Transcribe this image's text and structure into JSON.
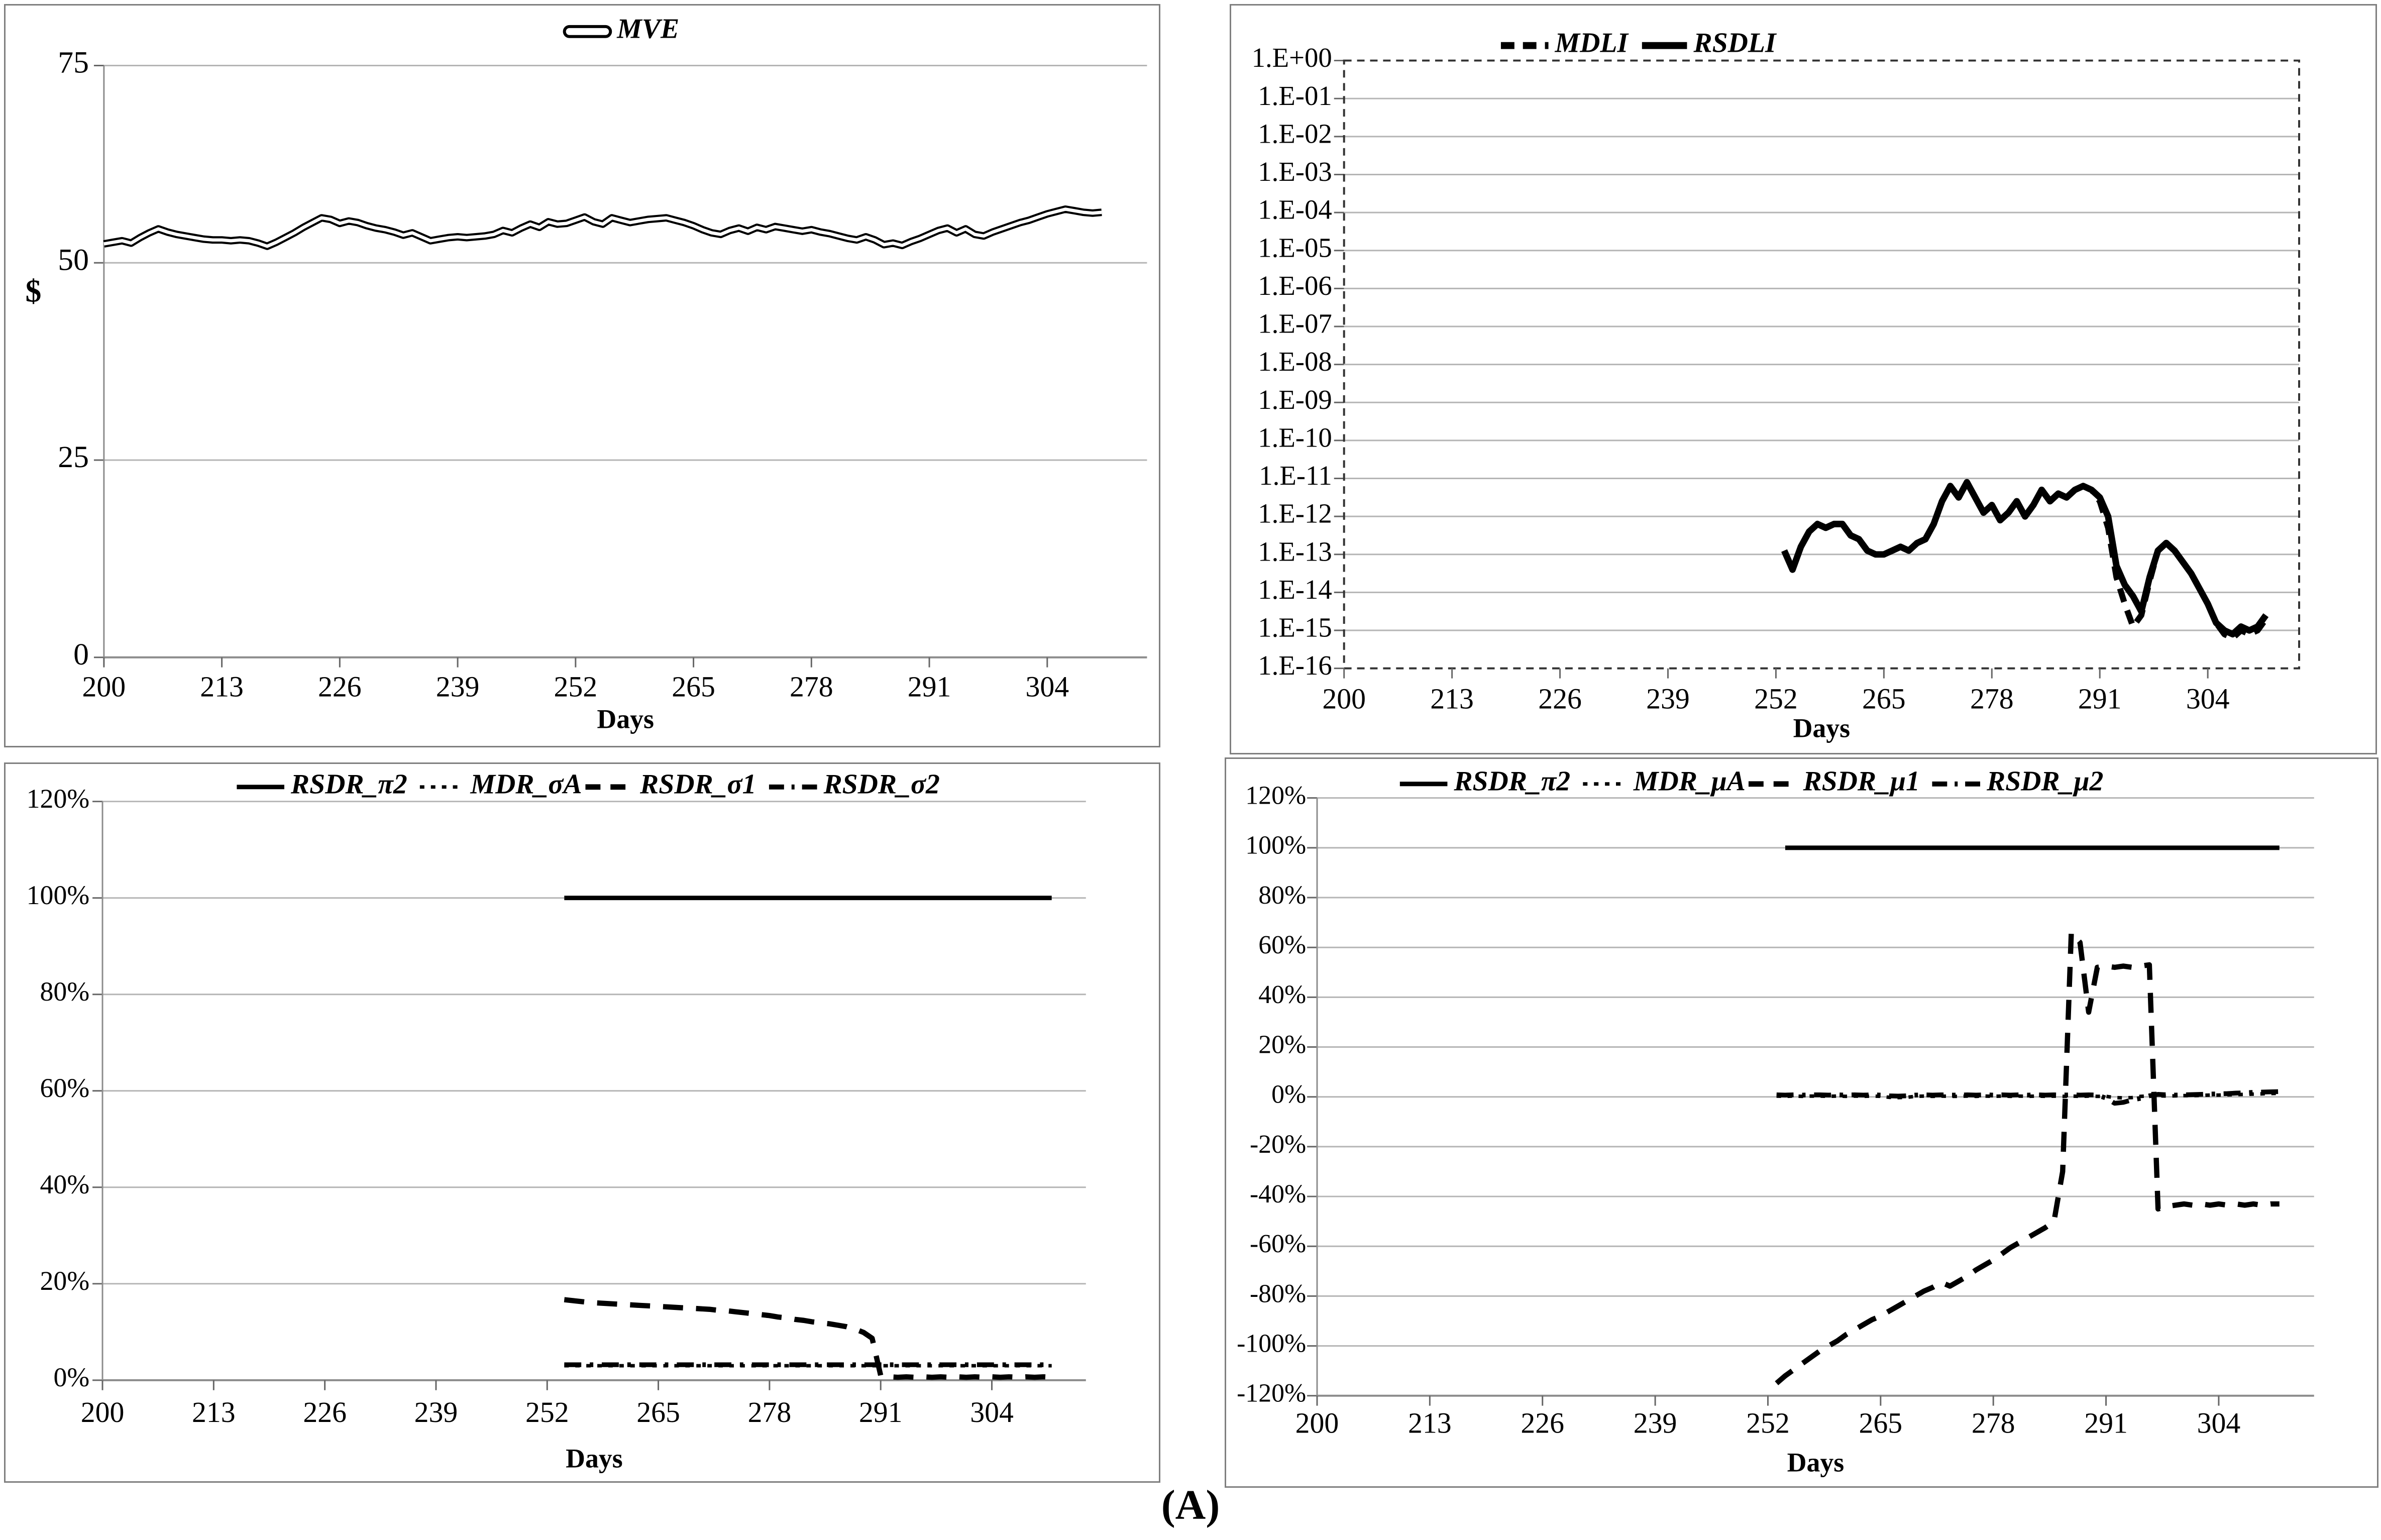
{
  "caption": "(A)",
  "colors": {
    "line": "#000000",
    "grid": "#b5b5b5",
    "axis": "#8c8c8c",
    "tick": "#666666",
    "frame_dash": "#333333",
    "text": "#000000",
    "panel_border": "#7f7f7f",
    "background": "#ffffff"
  },
  "chart_data": [
    {
      "id": "mve",
      "type": "line",
      "legend": [
        {
          "label": "MVE",
          "style": "outline"
        }
      ],
      "xlabel": "Days",
      "ylabel": "$",
      "x_ticks": [
        200,
        213,
        226,
        239,
        252,
        265,
        278,
        291,
        304
      ],
      "x_domain": [
        200,
        315
      ],
      "y_scale": "linear",
      "y_domain": [
        0,
        75
      ],
      "axis_at": 0,
      "y_ticks": [
        {
          "label": "0",
          "value": 0
        },
        {
          "label": "25",
          "value": 25
        },
        {
          "label": "50",
          "value": 50
        },
        {
          "label": "75",
          "value": 75
        }
      ],
      "series": [
        {
          "name": "MVE",
          "style": "outline",
          "x_start": 200,
          "values": [
            52.4,
            52.6,
            52.8,
            52.5,
            53.2,
            53.8,
            54.3,
            53.9,
            53.6,
            53.4,
            53.2,
            53.0,
            52.9,
            52.9,
            52.8,
            52.9,
            52.8,
            52.5,
            52.1,
            52.6,
            53.2,
            53.8,
            54.5,
            55.1,
            55.7,
            55.5,
            55.0,
            55.3,
            55.1,
            54.7,
            54.4,
            54.2,
            53.9,
            53.5,
            53.8,
            53.3,
            52.8,
            53.0,
            53.2,
            53.3,
            53.2,
            53.3,
            53.4,
            53.6,
            54.1,
            53.8,
            54.4,
            54.9,
            54.5,
            55.2,
            54.9,
            55.0,
            55.4,
            55.8,
            55.2,
            54.9,
            55.7,
            55.4,
            55.1,
            55.3,
            55.5,
            55.6,
            55.7,
            55.4,
            55.1,
            54.7,
            54.2,
            53.8,
            53.6,
            54.1,
            54.4,
            54.0,
            54.5,
            54.2,
            54.6,
            54.4,
            54.2,
            54.0,
            54.2,
            53.9,
            53.7,
            53.4,
            53.1,
            52.9,
            53.3,
            52.9,
            52.3,
            52.5,
            52.2,
            52.7,
            53.1,
            53.6,
            54.1,
            54.4,
            53.8,
            54.3,
            53.6,
            53.4,
            53.9,
            54.3,
            54.7,
            55.1,
            55.4,
            55.8,
            56.2,
            56.5,
            56.8,
            56.6,
            56.4,
            56.3,
            56.4
          ]
        }
      ]
    },
    {
      "id": "dli",
      "type": "line",
      "legend": [
        {
          "label": "MDLI",
          "style": "dash-thick"
        },
        {
          "label": "RSDLI",
          "style": "solid-thick"
        }
      ],
      "xlabel": "Days",
      "ylabel": "",
      "x_ticks": [
        200,
        213,
        226,
        239,
        252,
        265,
        278,
        291,
        304
      ],
      "x_domain": [
        200,
        315
      ],
      "y_scale": "log-exponent",
      "y_domain": [
        0,
        -16
      ],
      "frame": "dashed",
      "y_ticks": [
        {
          "label": "1.E+00",
          "value": 0
        },
        {
          "label": "1.E-01",
          "value": -1
        },
        {
          "label": "1.E-02",
          "value": -2
        },
        {
          "label": "1.E-03",
          "value": -3
        },
        {
          "label": "1.E-04",
          "value": -4
        },
        {
          "label": "1.E-05",
          "value": -5
        },
        {
          "label": "1.E-06",
          "value": -6
        },
        {
          "label": "1.E-07",
          "value": -7
        },
        {
          "label": "1.E-08",
          "value": -8
        },
        {
          "label": "1.E-09",
          "value": -9
        },
        {
          "label": "1.E-10",
          "value": -10
        },
        {
          "label": "1.E-11",
          "value": -11
        },
        {
          "label": "1.E-12",
          "value": -12
        },
        {
          "label": "1.E-13",
          "value": -13
        },
        {
          "label": "1.E-14",
          "value": -14
        },
        {
          "label": "1.E-15",
          "value": -15
        },
        {
          "label": "1.E-16",
          "value": -16
        }
      ],
      "series": [
        {
          "name": "MDLI",
          "style": "dash-thick",
          "x_start": 253,
          "values": [
            -12.9,
            -13.4,
            -12.8,
            -12.4,
            -12.2,
            -12.3,
            -12.2,
            -12.2,
            -12.5,
            -12.6,
            -12.9,
            -13.0,
            -13.0,
            -12.9,
            -12.8,
            -12.9,
            -12.7,
            -12.6,
            -12.2,
            -11.6,
            -11.2,
            -11.5,
            -11.1,
            -11.5,
            -11.9,
            -11.7,
            -12.1,
            -11.9,
            -11.6,
            -12.0,
            -11.7,
            -11.3,
            -11.6,
            -11.4,
            -11.5,
            -11.3,
            -11.2,
            -11.3,
            -11.6,
            -12.3,
            -13.6,
            -14.3,
            -14.9,
            -14.6,
            -13.7,
            -12.9,
            -12.7,
            -12.9,
            -13.2,
            -13.5,
            -13.9,
            -14.3,
            -14.8,
            -15.1,
            -15.2,
            -15.0,
            -15.1,
            -15.0,
            -14.7
          ]
        },
        {
          "name": "RSDLI",
          "style": "solid-thick",
          "x_start": 253,
          "values": [
            -12.9,
            -13.4,
            -12.8,
            -12.4,
            -12.2,
            -12.3,
            -12.2,
            -12.2,
            -12.5,
            -12.6,
            -12.9,
            -13.0,
            -13.0,
            -12.9,
            -12.8,
            -12.9,
            -12.7,
            -12.6,
            -12.2,
            -11.6,
            -11.2,
            -11.5,
            -11.1,
            -11.5,
            -11.9,
            -11.7,
            -12.1,
            -11.9,
            -11.6,
            -12.0,
            -11.7,
            -11.3,
            -11.6,
            -11.4,
            -11.5,
            -11.3,
            -11.2,
            -11.3,
            -11.5,
            -12.0,
            -13.3,
            -13.8,
            -14.1,
            -14.5,
            -13.6,
            -12.9,
            -12.7,
            -12.9,
            -13.2,
            -13.5,
            -13.9,
            -14.3,
            -14.8,
            -15.0,
            -15.1,
            -14.9,
            -15.0,
            -14.9,
            -14.6
          ]
        }
      ]
    },
    {
      "id": "sigma",
      "type": "line",
      "legend": [
        {
          "label": "RSDR_π2",
          "style": "solid"
        },
        {
          "label": "MDR_σA",
          "style": "dot"
        },
        {
          "label": "RSDR_σ1",
          "style": "dash"
        },
        {
          "label": "RSDR_σ2",
          "style": "dash-dot"
        }
      ],
      "xlabel": "Days",
      "ylabel": "",
      "x_ticks": [
        200,
        213,
        226,
        239,
        252,
        265,
        278,
        291,
        304
      ],
      "x_domain": [
        200,
        315
      ],
      "y_scale": "linear",
      "y_domain": [
        0,
        120
      ],
      "axis_at": 0,
      "y_ticks": [
        {
          "label": "0%",
          "value": 0
        },
        {
          "label": "20%",
          "value": 20
        },
        {
          "label": "40%",
          "value": 40
        },
        {
          "label": "60%",
          "value": 60
        },
        {
          "label": "80%",
          "value": 80
        },
        {
          "label": "100%",
          "value": 100
        },
        {
          "label": "120%",
          "value": 120
        }
      ],
      "series": [
        {
          "name": "MDR_σA",
          "style": "dot",
          "x_start": 254,
          "x_end": 311,
          "const": 3.0
        },
        {
          "name": "RSDR_σ2",
          "style": "dash-dot",
          "x_start": 254,
          "x_end": 311,
          "const": 3.2
        },
        {
          "name": "RSDR_σ1",
          "style": "dash",
          "x_start": 254,
          "values": [
            16.7,
            16.5,
            16.3,
            16.1,
            16.0,
            15.9,
            15.8,
            15.7,
            15.6,
            15.5,
            15.4,
            15.3,
            15.2,
            15.1,
            15.0,
            14.9,
            14.8,
            14.7,
            14.5,
            14.4,
            14.2,
            14.0,
            13.8,
            13.6,
            13.4,
            13.1,
            12.9,
            12.6,
            12.4,
            12.1,
            11.9,
            11.7,
            11.4,
            11.1,
            10.6,
            9.9,
            8.7,
            1.0,
            0.7,
            0.6,
            0.7,
            0.6,
            0.7,
            0.6,
            0.7,
            0.6,
            0.7,
            0.6,
            0.7,
            0.6,
            0.7,
            0.6,
            0.7,
            0.6,
            0.7,
            0.6,
            0.7,
            0.6
          ]
        },
        {
          "name": "RSDR_π2",
          "style": "solid",
          "x_start": 254,
          "x_end": 311,
          "const": 100
        }
      ]
    },
    {
      "id": "mu",
      "type": "line",
      "legend": [
        {
          "label": "RSDR_π2",
          "style": "solid"
        },
        {
          "label": "MDR_μA",
          "style": "dot"
        },
        {
          "label": "RSDR_μ1",
          "style": "dash"
        },
        {
          "label": "RSDR_μ2",
          "style": "dash-dot"
        }
      ],
      "xlabel": "Days",
      "ylabel": "",
      "x_ticks": [
        200,
        213,
        226,
        239,
        252,
        265,
        278,
        291,
        304
      ],
      "x_domain": [
        200,
        315
      ],
      "y_scale": "linear",
      "y_domain": [
        -120,
        120
      ],
      "axis_at": -120,
      "y_ticks": [
        {
          "label": "-120%",
          "value": -120
        },
        {
          "label": "-100%",
          "value": -100
        },
        {
          "label": "-80%",
          "value": -80
        },
        {
          "label": "-60%",
          "value": -60
        },
        {
          "label": "-40%",
          "value": -40
        },
        {
          "label": "-20%",
          "value": -20
        },
        {
          "label": "0%",
          "value": 0
        },
        {
          "label": "20%",
          "value": 20
        },
        {
          "label": "40%",
          "value": 40
        },
        {
          "label": "60%",
          "value": 60
        },
        {
          "label": "80%",
          "value": 80
        },
        {
          "label": "100%",
          "value": 100
        },
        {
          "label": "120%",
          "value": 120
        }
      ],
      "series": [
        {
          "name": "MDR_μA",
          "style": "dot",
          "x_start": 253,
          "values": [
            0.3,
            0.2,
            0.3,
            0.2,
            0.3,
            0.3,
            0.2,
            0.3,
            0.2,
            0.3,
            0.2,
            0.3,
            0.2,
            -0.2,
            -0.3,
            -0.2,
            0.2,
            0.3,
            0.2,
            0.3,
            0.2,
            0.2,
            0.3,
            0.2,
            0.3,
            0.2,
            0.3,
            0.2,
            0.3,
            0.2,
            0.3,
            0.2,
            0.3,
            0.2,
            0.3,
            0.2,
            0.3,
            0.2,
            0.2,
            -0.3,
            -0.4,
            -0.3,
            0.2,
            0.3,
            0.4,
            0.3,
            0.4,
            0.5,
            0.5,
            0.6,
            0.7,
            0.7,
            0.8,
            0.9,
            1.0,
            1.1,
            1.2,
            1.3,
            1.4
          ]
        },
        {
          "name": "RSDR_μ2",
          "style": "dash-dot",
          "x_start": 253,
          "values": [
            0.8,
            0.7,
            0.8,
            0.7,
            0.8,
            0.8,
            0.7,
            0.8,
            0.7,
            0.8,
            0.7,
            0.8,
            0.7,
            0.4,
            0.3,
            0.4,
            0.7,
            0.8,
            0.7,
            0.8,
            0.7,
            0.7,
            0.8,
            0.7,
            0.8,
            0.7,
            0.8,
            0.7,
            0.8,
            0.7,
            0.8,
            0.7,
            0.8,
            0.7,
            0.8,
            0.7,
            0.8,
            0.7,
            -0.5,
            -2.6,
            -2.2,
            -1.2,
            -0.6,
            0.4,
            1.0,
            0.8,
            0.7,
            0.8,
            0.9,
            1.0,
            1.1,
            1.2,
            1.3,
            1.5,
            1.6,
            1.8,
            1.9,
            2.0,
            2.1
          ]
        },
        {
          "name": "RSDR_μ1",
          "style": "dash",
          "x_start": 253,
          "values": [
            -115,
            -112,
            -109.5,
            -107,
            -104.5,
            -102,
            -100,
            -98,
            -95.5,
            -93.5,
            -91.5,
            -89.5,
            -88,
            -86,
            -84,
            -82,
            -80,
            -78,
            -76.5,
            -74.5,
            -76,
            -74,
            -72,
            -69.5,
            -67.5,
            -65.5,
            -63,
            -60.5,
            -58.5,
            -56.5,
            -54.5,
            -52.5,
            -50,
            -30,
            66,
            62,
            34,
            52,
            52.5,
            52,
            52.5,
            52,
            52.5,
            53,
            -45,
            -44,
            -43.5,
            -43,
            -43.5,
            -43,
            -43.5,
            -43,
            -43.5,
            -43,
            -43.5,
            -43,
            -43.5,
            -43,
            -43
          ]
        },
        {
          "name": "RSDR_π2",
          "style": "solid",
          "x_start": 254,
          "x_end": 311,
          "const": 100
        }
      ]
    }
  ]
}
